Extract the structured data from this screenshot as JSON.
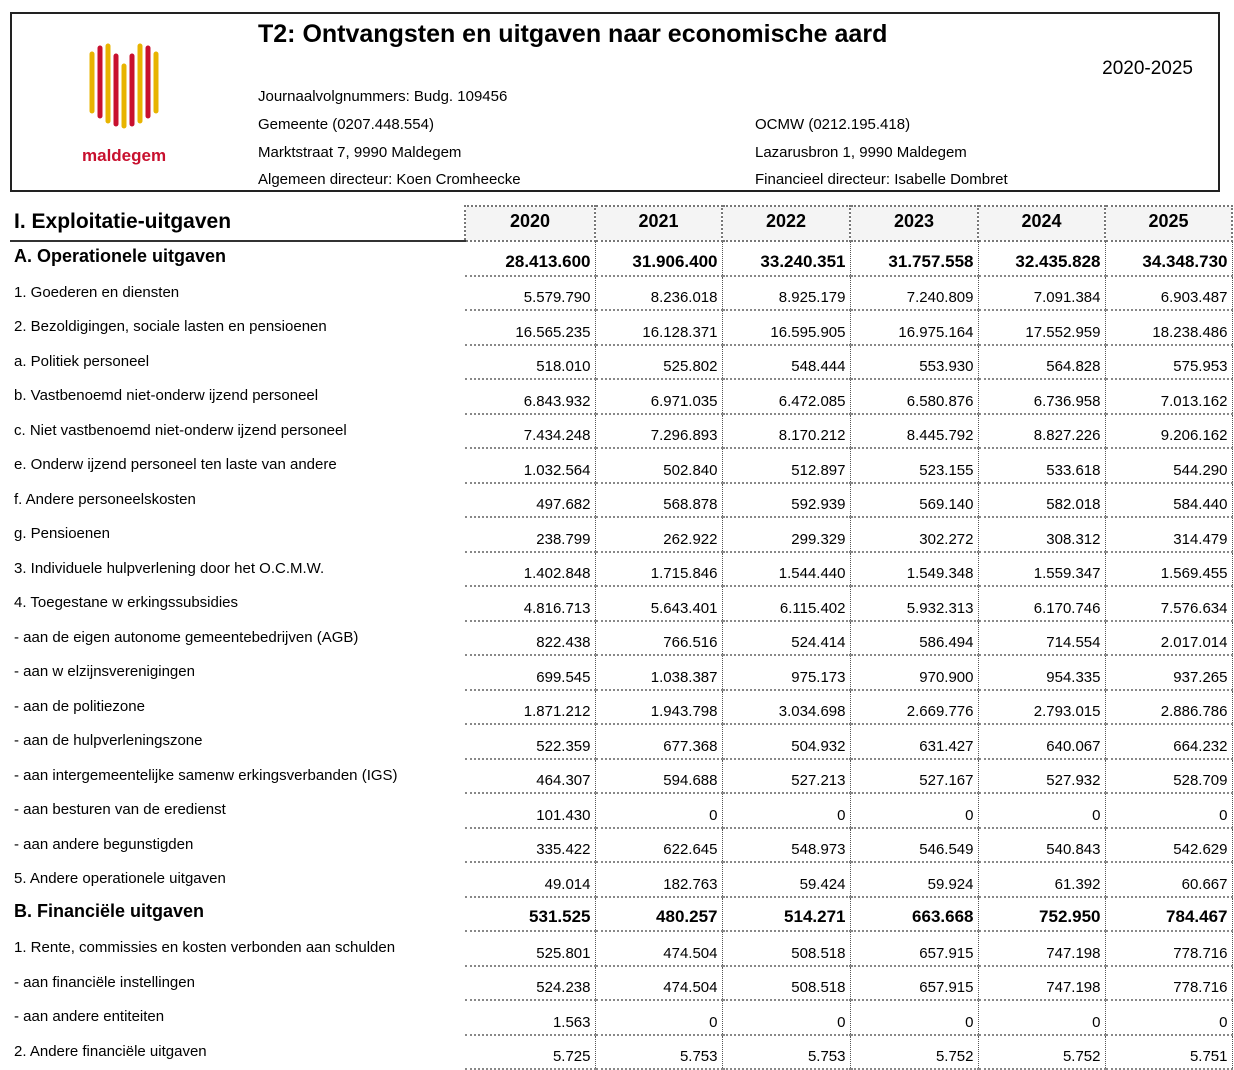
{
  "header": {
    "title": "T2: Ontvangsten en uitgaven naar economische aard",
    "period": "2020-2025",
    "logo_text": "maldegem",
    "journal": "Journaalvolgnummers: Budg. 109456",
    "left": [
      "Gemeente (0207.448.554)",
      "Marktstraat 7, 9990 Maldegem",
      "Algemeen directeur: Koen Cromheecke"
    ],
    "right": [
      "OCMW (0212.195.418)",
      "Lazarusbron 1, 9990 Maldegem",
      "Financieel directeur: Isabelle Dombret"
    ]
  },
  "table": {
    "title": "I. Exploitatie-uitgaven",
    "years": [
      "2020",
      "2021",
      "2022",
      "2023",
      "2024",
      "2025"
    ],
    "sections": [
      {
        "label": "A. Operationele uitgaven",
        "values": [
          "28.413.600",
          "31.906.400",
          "33.240.351",
          "31.757.558",
          "32.435.828",
          "34.348.730"
        ],
        "rows": [
          [
            "1. Goederen en diensten",
            "5.579.790",
            "8.236.018",
            "8.925.179",
            "7.240.809",
            "7.091.384",
            "6.903.487"
          ],
          [
            "2. Bezoldigingen, sociale lasten en pensioenen",
            "16.565.235",
            "16.128.371",
            "16.595.905",
            "16.975.164",
            "17.552.959",
            "18.238.486"
          ],
          [
            "a. Politiek personeel",
            "518.010",
            "525.802",
            "548.444",
            "553.930",
            "564.828",
            "575.953"
          ],
          [
            "b. Vastbenoemd niet-onderw ijzend personeel",
            "6.843.932",
            "6.971.035",
            "6.472.085",
            "6.580.876",
            "6.736.958",
            "7.013.162"
          ],
          [
            "c. Niet vastbenoemd niet-onderw ijzend personeel",
            "7.434.248",
            "7.296.893",
            "8.170.212",
            "8.445.792",
            "8.827.226",
            "9.206.162"
          ],
          [
            "e. Onderw ijzend personeel ten laste van andere",
            "1.032.564",
            "502.840",
            "512.897",
            "523.155",
            "533.618",
            "544.290"
          ],
          [
            "f. Andere personeelskosten",
            "497.682",
            "568.878",
            "592.939",
            "569.140",
            "582.018",
            "584.440"
          ],
          [
            "g. Pensioenen",
            "238.799",
            "262.922",
            "299.329",
            "302.272",
            "308.312",
            "314.479"
          ],
          [
            "3. Individuele hulpverlening door het O.C.M.W.",
            "1.402.848",
            "1.715.846",
            "1.544.440",
            "1.549.348",
            "1.559.347",
            "1.569.455"
          ],
          [
            "4. Toegestane w erkingssubsidies",
            "4.816.713",
            "5.643.401",
            "6.115.402",
            "5.932.313",
            "6.170.746",
            "7.576.634"
          ],
          [
            "- aan de eigen autonome gemeentebedrijven (AGB)",
            "822.438",
            "766.516",
            "524.414",
            "586.494",
            "714.554",
            "2.017.014"
          ],
          [
            "- aan w elzijnsverenigingen",
            "699.545",
            "1.038.387",
            "975.173",
            "970.900",
            "954.335",
            "937.265"
          ],
          [
            "- aan de politiezone",
            "1.871.212",
            "1.943.798",
            "3.034.698",
            "2.669.776",
            "2.793.015",
            "2.886.786"
          ],
          [
            "- aan de hulpverleningszone",
            "522.359",
            "677.368",
            "504.932",
            "631.427",
            "640.067",
            "664.232"
          ],
          [
            "- aan intergemeentelijke samenw erkingsverbanden (IGS)",
            "464.307",
            "594.688",
            "527.213",
            "527.167",
            "527.932",
            "528.709"
          ],
          [
            "- aan besturen van de eredienst",
            "101.430",
            "0",
            "0",
            "0",
            "0",
            "0"
          ],
          [
            "- aan andere begunstigden",
            "335.422",
            "622.645",
            "548.973",
            "546.549",
            "540.843",
            "542.629"
          ],
          [
            "5. Andere operationele uitgaven",
            "49.014",
            "182.763",
            "59.424",
            "59.924",
            "61.392",
            "60.667"
          ]
        ]
      },
      {
        "label": "B. Financiële uitgaven",
        "values": [
          "531.525",
          "480.257",
          "514.271",
          "663.668",
          "752.950",
          "784.467"
        ],
        "rows": [
          [
            "1. Rente, commissies en kosten verbonden aan schulden",
            "525.801",
            "474.504",
            "508.518",
            "657.915",
            "747.198",
            "778.716"
          ],
          [
            "- aan financiële instellingen",
            "524.238",
            "474.504",
            "508.518",
            "657.915",
            "747.198",
            "778.716"
          ],
          [
            "- aan andere entiteiten",
            "1.563",
            "0",
            "0",
            "0",
            "0",
            "0"
          ],
          [
            "2. Andere financiële uitgaven",
            "5.725",
            "5.753",
            "5.753",
            "5.752",
            "5.752",
            "5.751"
          ]
        ]
      }
    ]
  }
}
